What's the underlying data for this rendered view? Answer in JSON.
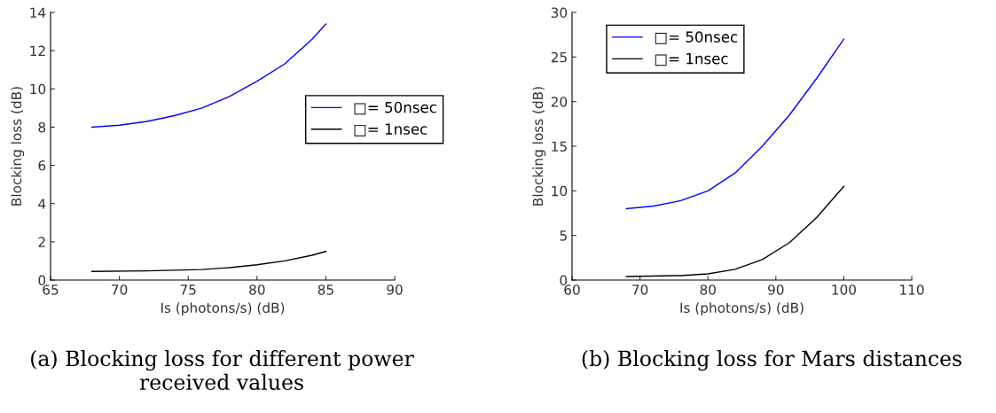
{
  "chart_data": [
    {
      "type": "line",
      "xlabel": "Is (photons/s) (dB)",
      "ylabel": "Blocking loss (dB)",
      "xlim": [
        65,
        90
      ],
      "xticks": [
        65,
        70,
        75,
        80,
        85,
        90
      ],
      "ylim": [
        0,
        14
      ],
      "yticks": [
        0,
        2,
        4,
        6,
        8,
        10,
        12,
        14
      ],
      "legend": "right",
      "grid": false,
      "annotations": [
        "(a) Blocking loss for different power received values"
      ],
      "series": [
        {
          "name": "□= 50nsec",
          "color": "#0000ff",
          "x": [
            68,
            70,
            72,
            74,
            76,
            78,
            80,
            82,
            84,
            85
          ],
          "values": [
            8.0,
            8.1,
            8.3,
            8.6,
            9.0,
            9.6,
            10.4,
            11.3,
            12.6,
            13.4
          ]
        },
        {
          "name": "□= 1nsec",
          "color": "#000000",
          "x": [
            68,
            72,
            76,
            78,
            80,
            82,
            84,
            85
          ],
          "values": [
            0.45,
            0.48,
            0.55,
            0.65,
            0.8,
            1.0,
            1.3,
            1.5
          ]
        }
      ]
    },
    {
      "type": "line",
      "xlabel": "Is (photons/s) (dB)",
      "ylabel": "Blocking loss (dB)",
      "xlim": [
        60,
        110
      ],
      "xticks": [
        60,
        70,
        80,
        90,
        100,
        110
      ],
      "ylim": [
        0,
        30
      ],
      "yticks": [
        0,
        5,
        10,
        15,
        20,
        25,
        30
      ],
      "legend": "top left",
      "grid": false,
      "annotations": [
        "(b) Blocking loss for Mars distances"
      ],
      "series": [
        {
          "name": "□= 50nsec",
          "color": "#0000ff",
          "x": [
            68,
            72,
            76,
            80,
            84,
            88,
            92,
            96,
            100
          ],
          "values": [
            8.0,
            8.3,
            8.9,
            10.0,
            12.0,
            15.0,
            18.5,
            22.6,
            27.0
          ]
        },
        {
          "name": "□= 1nsec",
          "color": "#000000",
          "x": [
            68,
            76,
            80,
            84,
            88,
            92,
            96,
            100
          ],
          "values": [
            0.4,
            0.5,
            0.7,
            1.2,
            2.3,
            4.2,
            7.0,
            10.5
          ]
        }
      ]
    }
  ]
}
